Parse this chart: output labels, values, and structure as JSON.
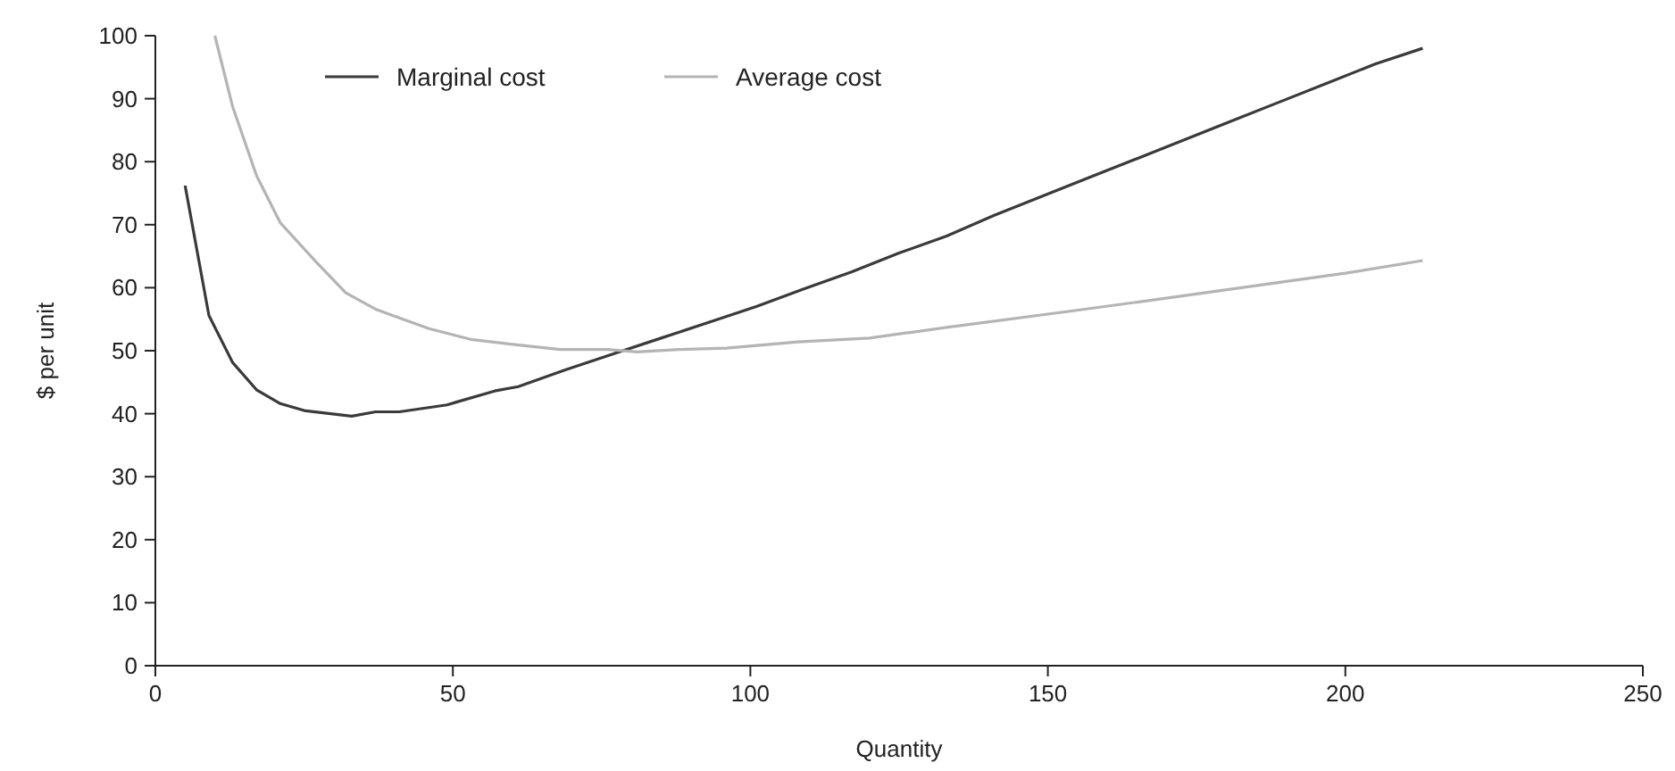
{
  "chart_data": {
    "type": "line",
    "xlabel": "Quantity",
    "ylabel": "$ per unit",
    "xlim": [
      0,
      250
    ],
    "ylim": [
      0,
      100
    ],
    "xticks": [
      0,
      50,
      100,
      150,
      200,
      250
    ],
    "yticks": [
      0,
      10,
      20,
      30,
      40,
      50,
      60,
      70,
      80,
      90,
      100
    ],
    "grid": false,
    "legend": "top left",
    "marker": "none",
    "line_style": "solid",
    "series": [
      {
        "name": "Marginal cost",
        "color": "#3a3a3a",
        "x": [
          5,
          9,
          13,
          17,
          21,
          25,
          33,
          37,
          41,
          49,
          57,
          61,
          69,
          77,
          85,
          93,
          101,
          109,
          117,
          125,
          133,
          141,
          149,
          157,
          165,
          173,
          181,
          189,
          197,
          205,
          213
        ],
        "values": [
          76.2,
          55.6,
          48.1,
          43.8,
          41.6,
          40.5,
          39.6,
          40.3,
          40.3,
          41.4,
          43.6,
          44.3,
          47,
          49.5,
          52,
          54.5,
          57,
          59.8,
          62.5,
          65.5,
          68.2,
          71.5,
          74.5,
          77.5,
          80.5,
          83.5,
          86.5,
          89.5,
          92.5,
          95.5,
          98
        ]
      },
      {
        "name": "Average cost",
        "color": "#b4b4b4",
        "x": [
          10,
          13,
          17,
          21,
          27,
          32,
          37,
          41,
          46,
          53,
          61,
          68,
          76,
          81,
          88,
          96,
          108,
          120,
          133,
          154,
          175,
          200,
          213
        ],
        "values": [
          100,
          88.7,
          77.8,
          70.3,
          64.1,
          59.2,
          56.6,
          55.2,
          53.5,
          51.8,
          50.9,
          50.2,
          50.2,
          49.8,
          50.2,
          50.4,
          51.4,
          52,
          53.7,
          56.3,
          59,
          62.3,
          64.3
        ]
      }
    ]
  }
}
